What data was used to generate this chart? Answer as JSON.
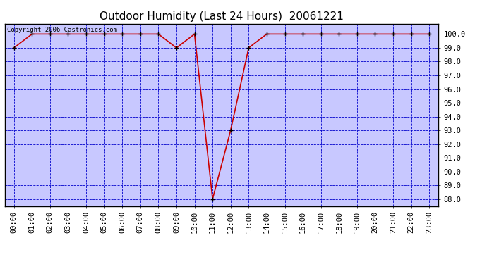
{
  "title": "Outdoor Humidity (Last 24 Hours)  20061221",
  "copyright_text": "Copyright 2006 Castronics.com",
  "background_color": "#c8c8ff",
  "line_color": "#cc0000",
  "marker_color": "#000000",
  "grid_color": "#0000cc",
  "x_labels": [
    "00:00",
    "01:00",
    "02:00",
    "03:00",
    "04:00",
    "05:00",
    "06:00",
    "07:00",
    "08:00",
    "09:00",
    "10:00",
    "11:00",
    "12:00",
    "13:00",
    "14:00",
    "15:00",
    "16:00",
    "17:00",
    "18:00",
    "19:00",
    "20:00",
    "21:00",
    "22:00",
    "23:00"
  ],
  "x_values": [
    0,
    1,
    2,
    3,
    4,
    5,
    6,
    7,
    8,
    9,
    10,
    11,
    12,
    13,
    14,
    15,
    16,
    17,
    18,
    19,
    20,
    21,
    22,
    23
  ],
  "y_values": [
    99.0,
    100.0,
    100.0,
    100.0,
    100.0,
    100.0,
    100.0,
    100.0,
    100.0,
    99.0,
    100.0,
    88.0,
    93.0,
    99.0,
    100.0,
    100.0,
    100.0,
    100.0,
    100.0,
    100.0,
    100.0,
    100.0,
    100.0,
    100.0
  ],
  "ylim": [
    87.5,
    100.75
  ],
  "yticks": [
    88.0,
    89.0,
    90.0,
    91.0,
    92.0,
    93.0,
    94.0,
    95.0,
    96.0,
    97.0,
    98.0,
    99.0,
    100.0
  ],
  "title_fontsize": 11,
  "tick_fontsize": 7.5,
  "copyright_fontsize": 6.5,
  "outer_bg": "#ffffff",
  "border_color": "#000000"
}
